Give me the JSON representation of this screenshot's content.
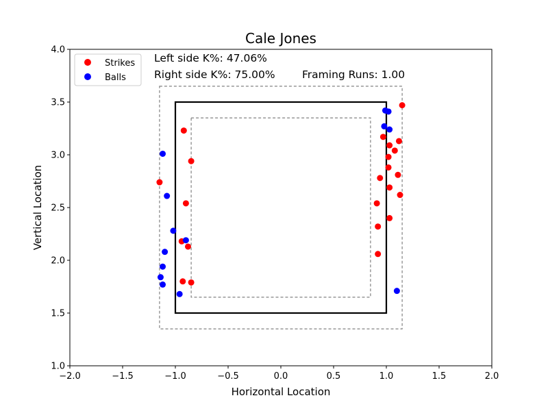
{
  "chart_data": {
    "type": "scatter",
    "title": "Cale Jones",
    "xlabel": "Horizontal Location",
    "ylabel": "Vertical Location",
    "xlim": [
      -2.0,
      2.0
    ],
    "ylim": [
      1.0,
      4.0
    ],
    "xticks": [
      -2.0,
      -1.5,
      -1.0,
      -0.5,
      0.0,
      0.5,
      1.0,
      1.5,
      2.0
    ],
    "yticks": [
      1.0,
      1.5,
      2.0,
      2.5,
      3.0,
      3.5,
      4.0
    ],
    "xtick_labels": [
      "−2.0",
      "−1.5",
      "−1.0",
      "−0.5",
      "0.0",
      "0.5",
      "1.0",
      "1.5",
      "2.0"
    ],
    "ytick_labels": [
      "1.0",
      "1.5",
      "2.0",
      "2.5",
      "3.0",
      "3.5",
      "4.0"
    ],
    "grid": false,
    "legend_position": "top-left",
    "annotations": {
      "left_k": "Left side K%: 47.06%",
      "right_k": "Right side K%: 75.00%",
      "framing": "Framing Runs: 1.00"
    },
    "zones": {
      "strike_zone": {
        "x": [
          -1.0,
          1.0
        ],
        "y": [
          1.5,
          3.5
        ]
      },
      "outer_zone": {
        "x": [
          -1.15,
          1.15
        ],
        "y": [
          1.35,
          3.65
        ]
      },
      "inner_zone": {
        "x": [
          -0.85,
          0.85
        ],
        "y": [
          1.65,
          3.35
        ]
      }
    },
    "series": [
      {
        "name": "Strikes",
        "color": "#ff0000",
        "points": [
          [
            -1.15,
            2.74
          ],
          [
            -0.92,
            3.23
          ],
          [
            -0.85,
            2.94
          ],
          [
            -0.9,
            2.54
          ],
          [
            -0.94,
            2.18
          ],
          [
            -0.88,
            2.13
          ],
          [
            -0.93,
            1.8
          ],
          [
            -0.85,
            1.79
          ],
          [
            1.15,
            3.47
          ],
          [
            0.97,
            3.17
          ],
          [
            1.03,
            3.09
          ],
          [
            1.12,
            3.13
          ],
          [
            1.08,
            3.04
          ],
          [
            1.02,
            2.98
          ],
          [
            1.02,
            2.88
          ],
          [
            1.11,
            2.81
          ],
          [
            0.94,
            2.78
          ],
          [
            1.03,
            2.69
          ],
          [
            1.13,
            2.62
          ],
          [
            0.91,
            2.54
          ],
          [
            1.03,
            2.4
          ],
          [
            0.92,
            2.32
          ],
          [
            0.92,
            2.06
          ]
        ]
      },
      {
        "name": "Balls",
        "color": "#0000ff",
        "points": [
          [
            -1.12,
            3.01
          ],
          [
            -1.08,
            2.61
          ],
          [
            -1.02,
            2.28
          ],
          [
            -0.9,
            2.19
          ],
          [
            -1.1,
            2.08
          ],
          [
            -1.12,
            1.94
          ],
          [
            -1.14,
            1.84
          ],
          [
            -1.12,
            1.77
          ],
          [
            -0.96,
            1.68
          ],
          [
            0.99,
            3.42
          ],
          [
            1.02,
            3.41
          ],
          [
            0.98,
            3.27
          ],
          [
            1.03,
            3.24
          ],
          [
            1.1,
            1.71
          ]
        ]
      }
    ]
  }
}
